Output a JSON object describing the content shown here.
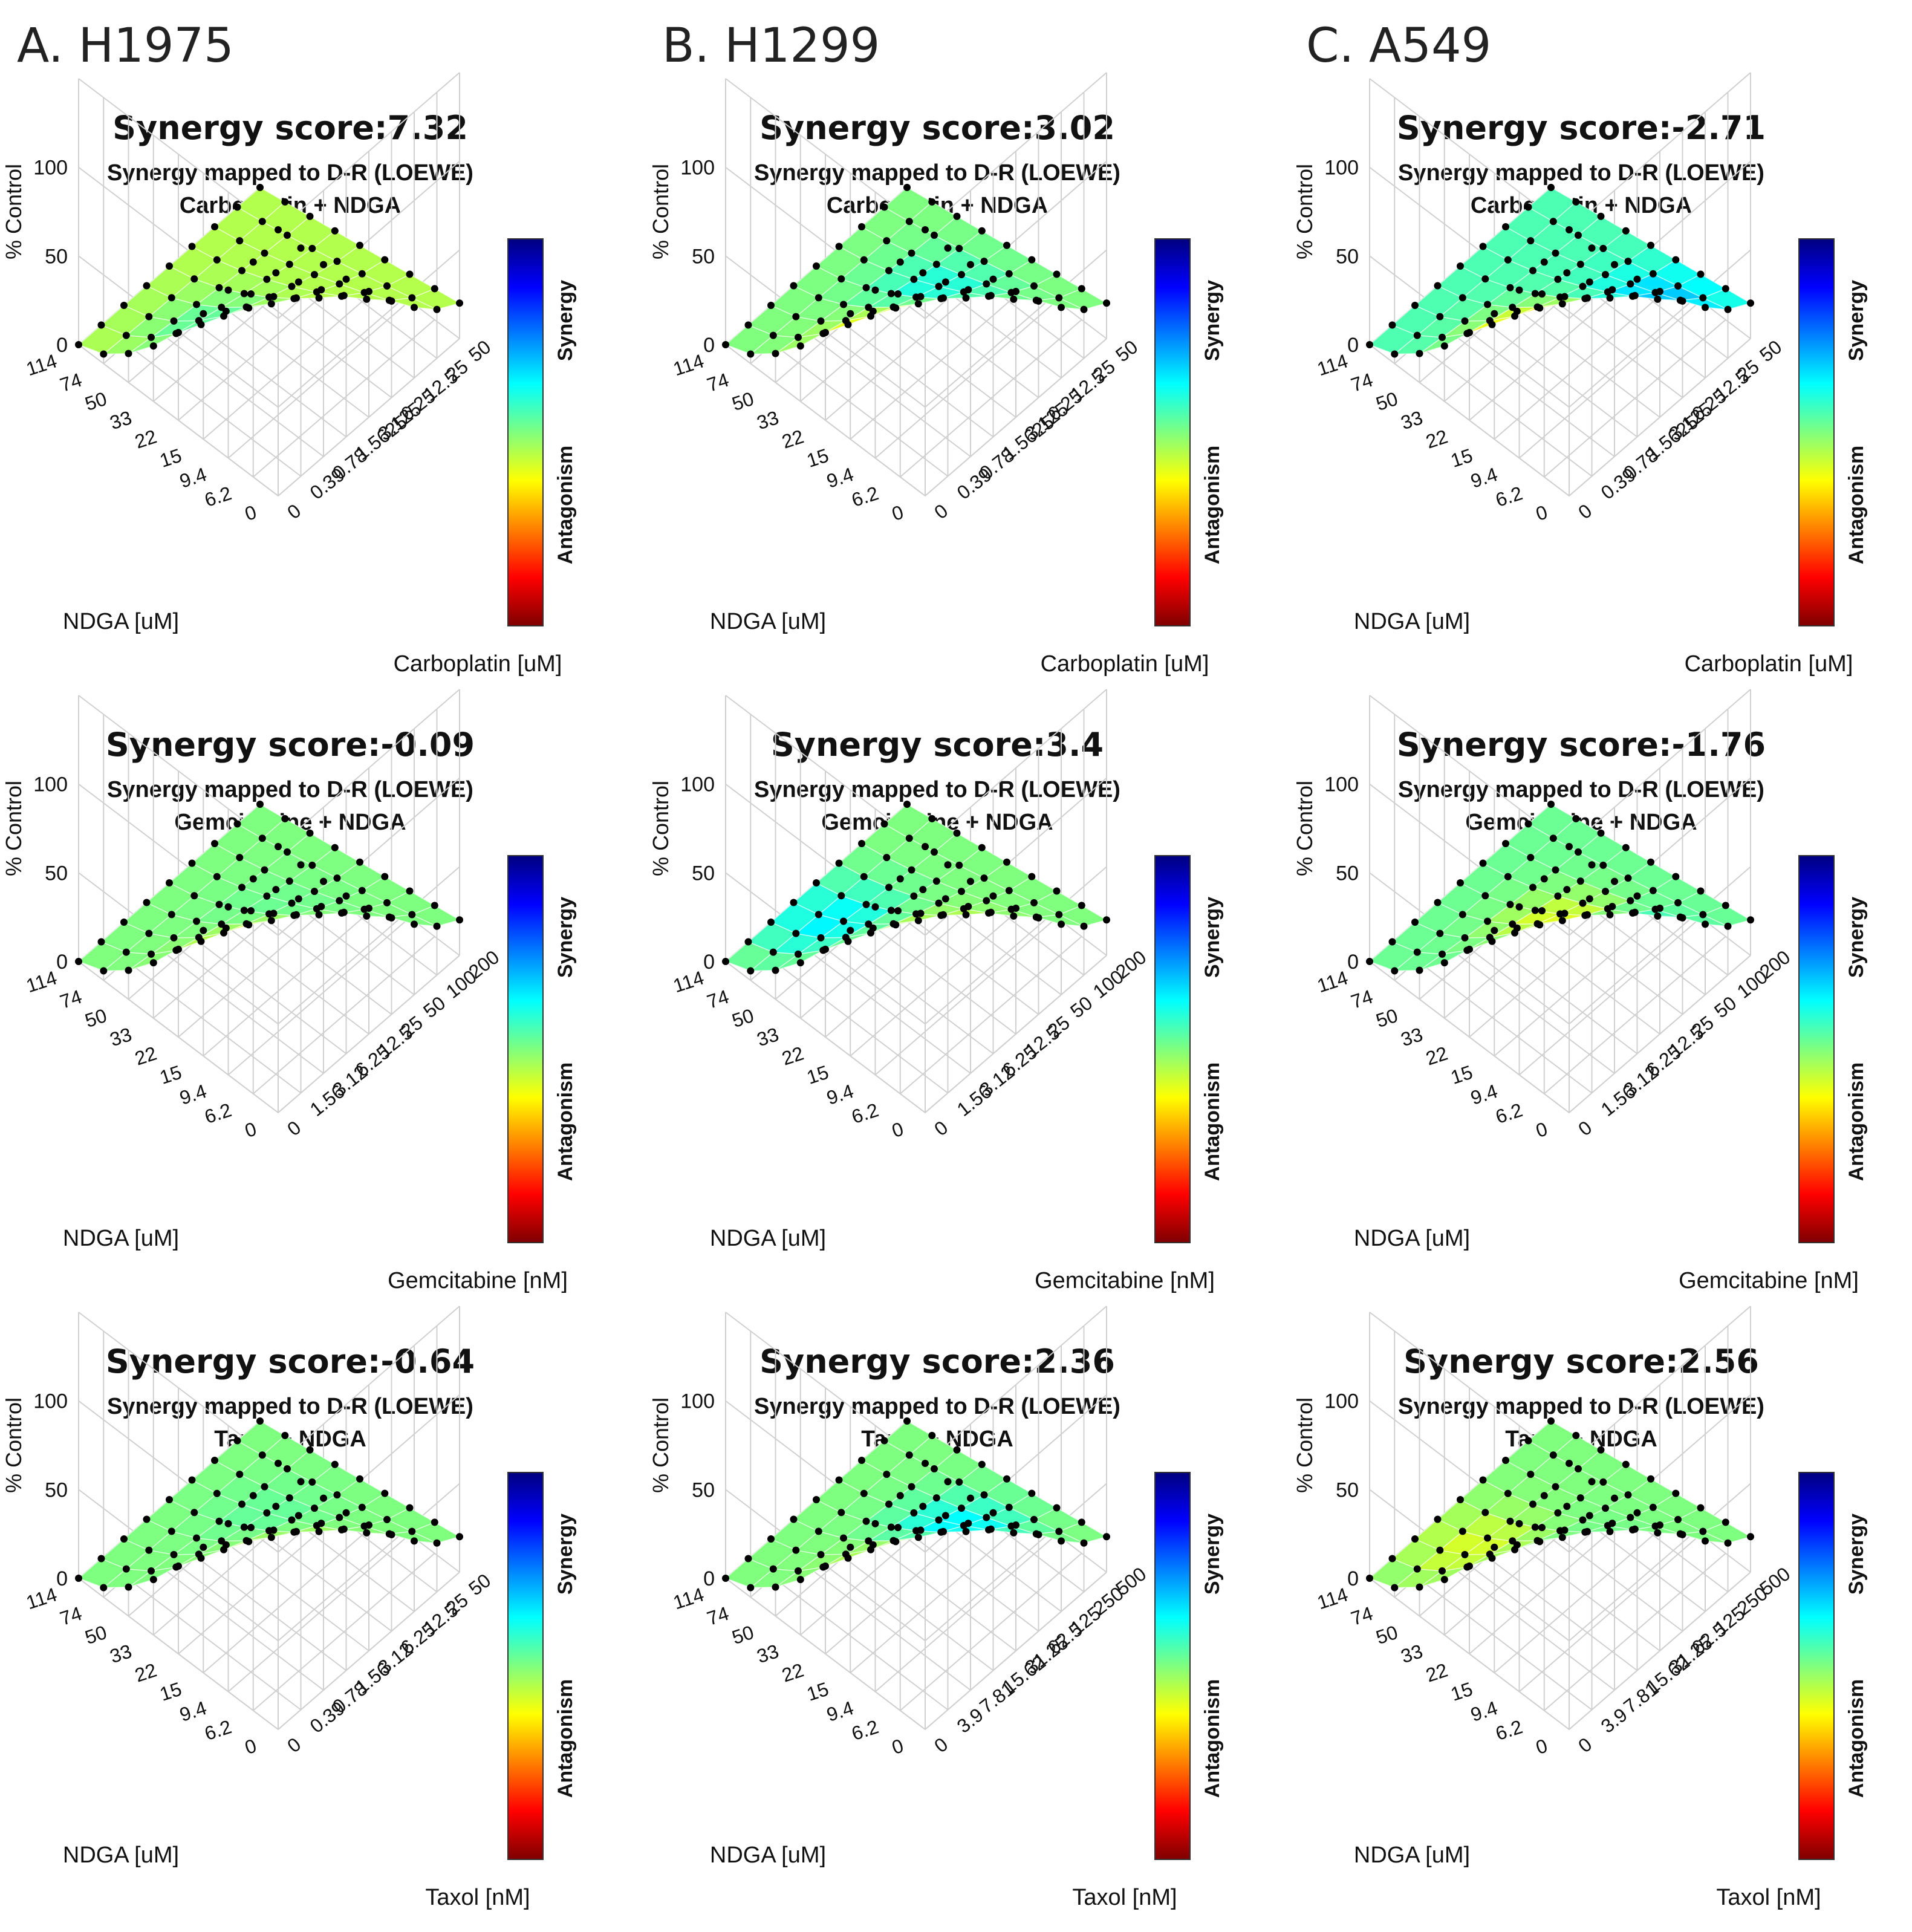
{
  "columns": [
    {
      "label": "A. H1975"
    },
    {
      "label": "B. H1299"
    },
    {
      "label": "C. A549"
    }
  ],
  "colorbar": {
    "synergy_label": "Synergy",
    "antagonism_label": "Antagonism"
  },
  "colors": {
    "low": "#7f0000",
    "mid": "#7fff7f",
    "high": "#00007f"
  },
  "chart_data": [
    {
      "type": "surface",
      "score": "Synergy score:7.32",
      "title": "Synergy mapped to D-R (LOEWE)",
      "subtitle": "Carboplatin + NDGA",
      "zlabel": "% Control",
      "xlabel": "NDGA [uM]",
      "ylabel": "Carboplatin [uM]",
      "x_ticks": [
        "0",
        "6.2",
        "9.4",
        "15",
        "22",
        "33",
        "50",
        "74",
        "114"
      ],
      "y_ticks": [
        "0",
        "0.39",
        "0.78",
        "1.5625",
        "3.125",
        "6.25",
        "12.5",
        "25",
        "50"
      ],
      "z_ticks": [
        "0",
        "50",
        "100"
      ],
      "zlim": [
        0,
        150
      ],
      "z_range": [
        0,
        150
      ],
      "hot": [
        [
          0.25,
          0.3,
          0.1
        ],
        [
          0.6,
          0.25,
          -0.3
        ]
      ],
      "mean_synergy": 0.05
    },
    {
      "type": "surface",
      "score": "Synergy score:3.02",
      "title": "Synergy mapped to D-R (LOEWE)",
      "subtitle": "Carboplatin + NDGA",
      "zlabel": "% Control",
      "xlabel": "NDGA [uM]",
      "ylabel": "Carboplatin [uM]",
      "x_ticks": [
        "0",
        "6.2",
        "9.4",
        "15",
        "22",
        "33",
        "50",
        "74",
        "114"
      ],
      "y_ticks": [
        "0",
        "0.39",
        "0.78",
        "1.5625",
        "3.125",
        "6.25",
        "12.5",
        "25",
        "50"
      ],
      "z_ticks": [
        "0",
        "50",
        "100"
      ],
      "zlim": [
        0,
        150
      ],
      "z_range": [
        0,
        150
      ],
      "hot": [
        [
          0.35,
          0.15,
          0.75
        ],
        [
          0.5,
          0.6,
          -0.35
        ]
      ],
      "mean_synergy": 0.0
    },
    {
      "type": "surface",
      "score": "Synergy score:-2.71",
      "title": "Synergy mapped to D-R (LOEWE)",
      "subtitle": "Carboplatin + NDGA",
      "zlabel": "% Control",
      "xlabel": "NDGA [uM]",
      "ylabel": "Carboplatin [uM]",
      "x_ticks": [
        "0",
        "6.2",
        "9.4",
        "15",
        "22",
        "33",
        "50",
        "74",
        "114"
      ],
      "y_ticks": [
        "0",
        "0.39",
        "0.78",
        "1.5625",
        "3.125",
        "6.25",
        "12.5",
        "25",
        "50"
      ],
      "z_ticks": [
        "0",
        "50",
        "100"
      ],
      "zlim": [
        0,
        150
      ],
      "z_range": [
        0,
        150
      ],
      "hot": [
        [
          0.4,
          0.2,
          0.8
        ],
        [
          0.2,
          0.75,
          -0.45
        ]
      ],
      "mean_synergy": -0.05
    },
    {
      "type": "surface",
      "score": "Synergy score:-0.09",
      "title": "Synergy mapped to D-R (LOEWE)",
      "subtitle": "Gemcitabine + NDGA",
      "zlabel": "% Control",
      "xlabel": "NDGA [uM]",
      "ylabel": "Gemcitabine [nM]",
      "x_ticks": [
        "0",
        "6.2",
        "9.4",
        "15",
        "22",
        "33",
        "50",
        "74",
        "114"
      ],
      "y_ticks": [
        "0",
        "1.56",
        "3.12",
        "6.25",
        "12.5",
        "25",
        "50",
        "100",
        "200"
      ],
      "z_ticks": [
        "0",
        "50",
        "100"
      ],
      "zlim": [
        0,
        150
      ],
      "z_range": [
        0,
        150
      ],
      "hot": [
        [
          0.3,
          0.2,
          0.6
        ],
        [
          0.5,
          0.5,
          -0.1
        ]
      ],
      "mean_synergy": 0.0
    },
    {
      "type": "surface",
      "score": "Synergy score:3.4",
      "title": "Synergy mapped to D-R (LOEWE)",
      "subtitle": "Gemcitabine + NDGA",
      "zlabel": "% Control",
      "xlabel": "NDGA [uM]",
      "ylabel": "Gemcitabine [nM]",
      "x_ticks": [
        "0",
        "6.2",
        "9.4",
        "15",
        "22",
        "33",
        "50",
        "74",
        "114"
      ],
      "y_ticks": [
        "0",
        "1.56",
        "3.12",
        "6.25",
        "12.5",
        "25",
        "50",
        "100",
        "200"
      ],
      "z_ticks": [
        "0",
        "50",
        "100"
      ],
      "zlim": [
        0,
        150
      ],
      "z_range": [
        0,
        150
      ],
      "hot": [
        [
          0.25,
          0.35,
          0.35
        ],
        [
          0.8,
          0.35,
          -0.45
        ]
      ],
      "mean_synergy": 0.0
    },
    {
      "type": "surface",
      "score": "Synergy score:-1.76",
      "title": "Synergy mapped to D-R (LOEWE)",
      "subtitle": "Gemcitabine + NDGA",
      "zlabel": "% Control",
      "xlabel": "NDGA [uM]",
      "ylabel": "Gemcitabine [nM]",
      "x_ticks": [
        "0",
        "6.2",
        "9.4",
        "15",
        "22",
        "33",
        "50",
        "74",
        "114"
      ],
      "y_ticks": [
        "0",
        "1.56",
        "3.12",
        "6.25",
        "12.5",
        "25",
        "50",
        "100",
        "200"
      ],
      "z_ticks": [
        "0",
        "50",
        "100"
      ],
      "zlim": [
        0,
        150
      ],
      "z_range": [
        0,
        150
      ],
      "hot": [
        [
          0.45,
          0.45,
          0.45
        ],
        [
          0.15,
          0.5,
          -0.3
        ]
      ],
      "mean_synergy": -0.02
    },
    {
      "type": "surface",
      "score": "Synergy score:-0.64",
      "title": "Synergy mapped to D-R (LOEWE)",
      "subtitle": "Taxol + NDGA",
      "zlabel": "% Control",
      "xlabel": "NDGA [uM]",
      "ylabel": "Taxol [nM]",
      "x_ticks": [
        "0",
        "6.2",
        "9.4",
        "15",
        "22",
        "33",
        "50",
        "74",
        "114"
      ],
      "y_ticks": [
        "0",
        "0.39",
        "0.78",
        "1.56",
        "3.12",
        "6.25",
        "12.5",
        "25",
        "50"
      ],
      "z_ticks": [
        "0",
        "50",
        "100"
      ],
      "zlim": [
        0,
        150
      ],
      "z_range": [
        0,
        150
      ],
      "hot": [
        [
          0.2,
          0.3,
          0.45
        ],
        [
          0.6,
          0.6,
          -0.1
        ]
      ],
      "mean_synergy": 0.0
    },
    {
      "type": "surface",
      "score": "Synergy score:2.36",
      "title": "Synergy mapped to D-R (LOEWE)",
      "subtitle": "Taxol + NDGA",
      "zlabel": "% Control",
      "xlabel": "NDGA [uM]",
      "ylabel": "Taxol [nM]",
      "x_ticks": [
        "0",
        "6.2",
        "9.4",
        "15",
        "22",
        "33",
        "50",
        "74",
        "114"
      ],
      "y_ticks": [
        "0",
        "3.9",
        "7.81",
        "15.62",
        "31.25",
        "62.5",
        "125",
        "250",
        "500"
      ],
      "z_ticks": [
        "0",
        "50",
        "100"
      ],
      "zlim": [
        0,
        150
      ],
      "z_range": [
        0,
        150
      ],
      "hot": [
        [
          0.35,
          0.25,
          0.35
        ],
        [
          0.4,
          0.6,
          -0.5
        ]
      ],
      "mean_synergy": 0.0
    },
    {
      "type": "surface",
      "score": "Synergy score:2.56",
      "title": "Synergy mapped to D-R (LOEWE)",
      "subtitle": "Taxol + NDGA",
      "zlabel": "% Control",
      "xlabel": "NDGA [uM]",
      "ylabel": "Taxol [nM]",
      "x_ticks": [
        "0",
        "6.2",
        "9.4",
        "15",
        "22",
        "33",
        "50",
        "74",
        "114"
      ],
      "y_ticks": [
        "0",
        "3.9",
        "7.81",
        "15.62",
        "31.25",
        "62.5",
        "125",
        "250",
        "500"
      ],
      "z_ticks": [
        "0",
        "50",
        "100"
      ],
      "zlim": [
        0,
        150
      ],
      "z_range": [
        0,
        150
      ],
      "hot": [
        [
          0.75,
          0.3,
          0.3
        ],
        [
          0.4,
          0.5,
          -0.05
        ]
      ],
      "mean_synergy": 0.0
    }
  ]
}
